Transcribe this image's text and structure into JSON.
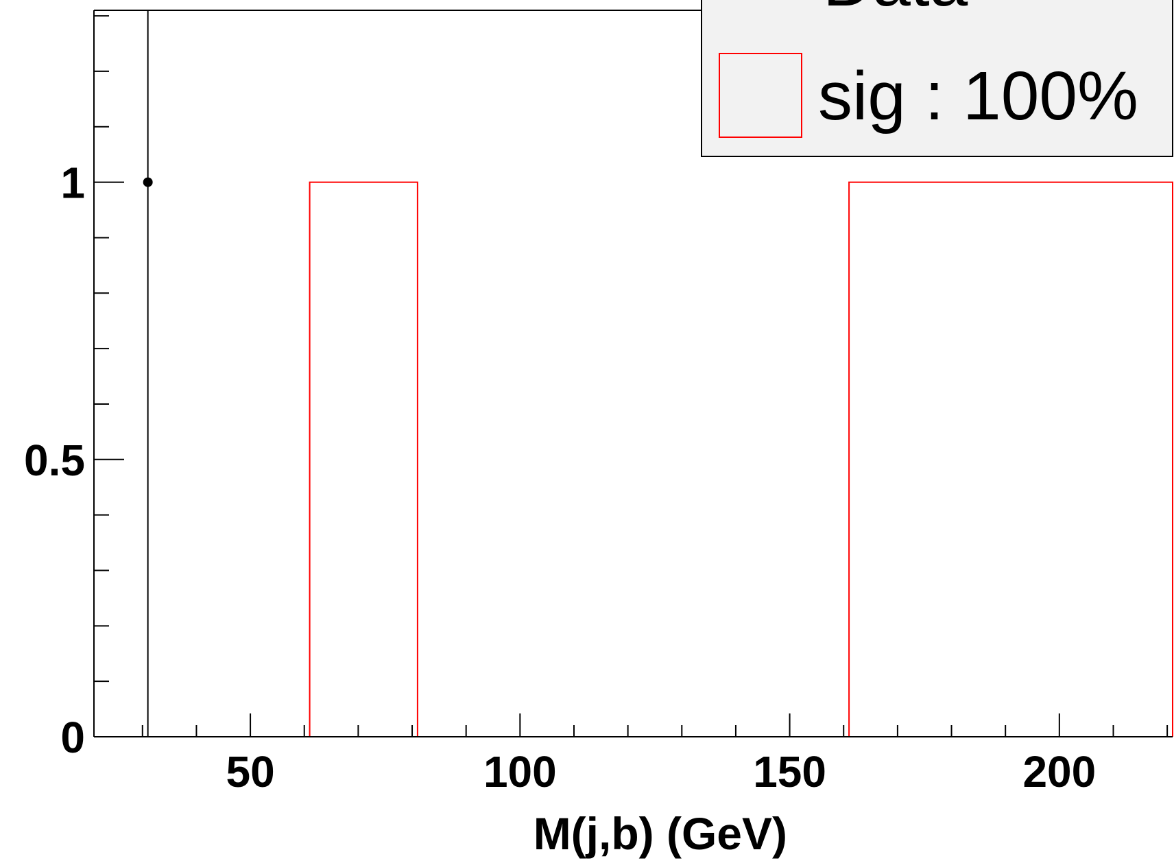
{
  "chart_data": {
    "type": "bar",
    "xlabel": "M(j,b) (GeV)",
    "ylabel": "",
    "xlim": [
      21,
      221
    ],
    "ylim": [
      0,
      1.31
    ],
    "x_ticks": [
      50,
      100,
      150,
      200
    ],
    "x_tick_labels": [
      "50",
      "100",
      "150",
      "200"
    ],
    "y_ticks": [
      0,
      0.5,
      1
    ],
    "y_tick_labels": [
      "0",
      "0.5",
      "1"
    ],
    "series": [
      {
        "name": "sig : 100%",
        "style": "histogram-outline",
        "color": "#ff0000",
        "bins": [
          {
            "x_low": 61,
            "x_high": 81,
            "value": 1
          },
          {
            "x_low": 161,
            "x_high": 221,
            "value": 1
          }
        ]
      },
      {
        "name": "Data",
        "style": "points",
        "color": "#000000",
        "points": [
          {
            "x": 31,
            "y": 1,
            "err_low": 1,
            "err_high": 1.31
          }
        ]
      }
    ],
    "legend": {
      "placement": "top-right",
      "entries": [
        "Data",
        "sig : 100%"
      ]
    },
    "grid": false
  }
}
